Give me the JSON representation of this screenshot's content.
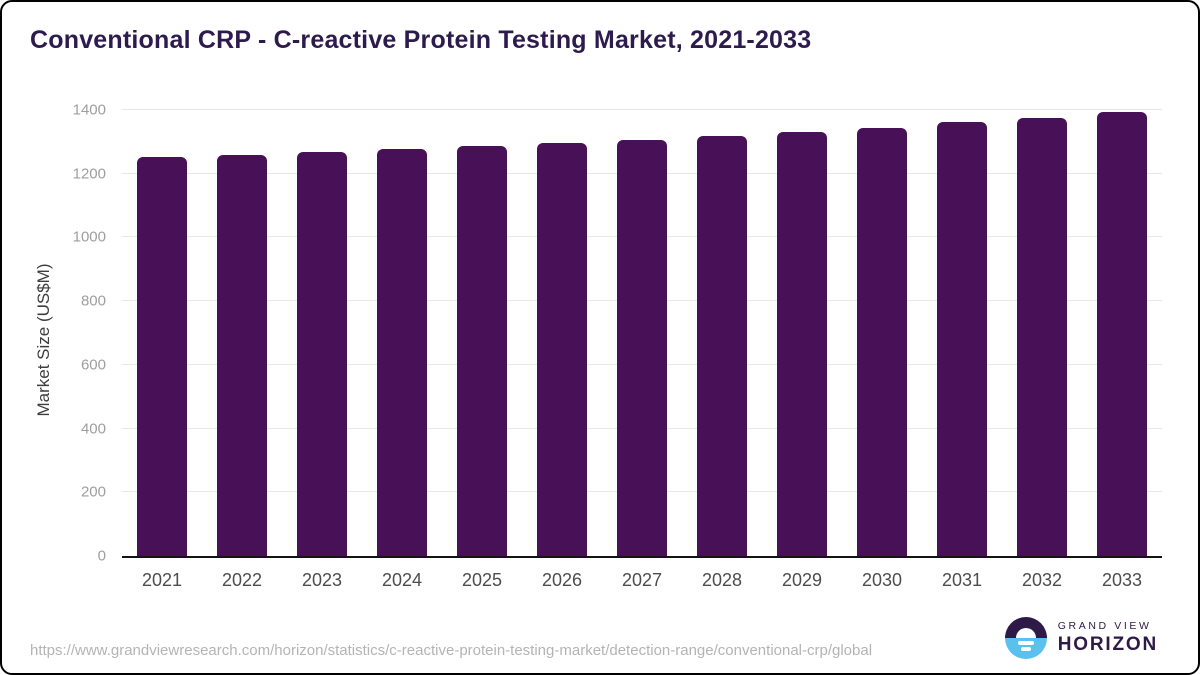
{
  "title": "Conventional CRP - C-reactive Protein Testing Market, 2021-2033",
  "chart_data": {
    "type": "bar",
    "categories": [
      "2021",
      "2022",
      "2023",
      "2024",
      "2025",
      "2026",
      "2027",
      "2028",
      "2029",
      "2030",
      "2031",
      "2032",
      "2033"
    ],
    "values": [
      1252,
      1260,
      1268,
      1277,
      1286,
      1295,
      1305,
      1317,
      1330,
      1345,
      1361,
      1376,
      1393
    ],
    "title": "Conventional CRP - C-reactive Protein Testing Market, 2021-2033",
    "xlabel": "",
    "ylabel": "Market Size (US$M)",
    "ylim": [
      0,
      1400
    ],
    "ytick_interval": 200,
    "grid": "horizontal",
    "legend": "none",
    "bar_color": "#481157"
  },
  "colors": {
    "bar": "#481157",
    "title_text": "#2e1b4d",
    "axis_line": "#141414",
    "gridline": "#e7e7e7",
    "tick_text": "#9e9e9e",
    "year_text": "#4d4d4d",
    "url_text": "#b4b4b4",
    "logo_purple": "#2e1a47",
    "logo_blue": "#5ac0ee"
  },
  "footer": {
    "source_url": "https://www.grandviewresearch.com/horizon/statistics/c-reactive-protein-testing-market/detection-range/conventional-crp/global",
    "brand": {
      "line1": "GRAND VIEW",
      "line2": "HORIZON"
    }
  }
}
